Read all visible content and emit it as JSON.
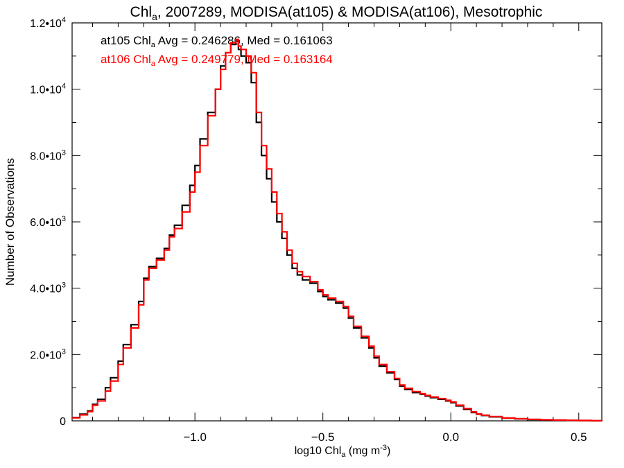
{
  "chart_data": {
    "type": "line",
    "step": true,
    "title": {
      "prefix": "Chl",
      "sub": "a",
      "suffix": ", 2007289, MODISA(at105) & MODISA(at106), Mesotrophic"
    },
    "xlabel": {
      "prefix": "log10 Chl",
      "sub": "a",
      "suffix": " (mg m",
      "sup": "-3",
      "end": ")"
    },
    "ylabel": "Number of Observations",
    "xlim": [
      -1.48,
      0.59
    ],
    "ylim": [
      0,
      12000
    ],
    "x_ticks": [
      {
        "value": -1.0,
        "label": "−1.0"
      },
      {
        "value": -0.5,
        "label": "−0.5"
      },
      {
        "value": 0.0,
        "label": "0.0"
      },
      {
        "value": 0.5,
        "label": "0.5"
      }
    ],
    "y_ticks": [
      {
        "value": 0,
        "mant": "0",
        "exp": ""
      },
      {
        "value": 2000,
        "mant": "2.0•10",
        "exp": "3"
      },
      {
        "value": 4000,
        "mant": "4.0•10",
        "exp": "3"
      },
      {
        "value": 6000,
        "mant": "6.0•10",
        "exp": "3"
      },
      {
        "value": 8000,
        "mant": "8.0•10",
        "exp": "3"
      },
      {
        "value": 10000,
        "mant": "1.0•10",
        "exp": "4"
      },
      {
        "value": 12000,
        "mant": "1.2•10",
        "exp": "4"
      }
    ],
    "series": [
      {
        "name": "at105",
        "color": "#000000",
        "annotation": {
          "prefix": "at105 Chl",
          "sub": "a",
          "suffix": " Avg = 0.246286, Med = 0.161063"
        },
        "x": [
          -1.48,
          -1.45,
          -1.42,
          -1.4,
          -1.38,
          -1.35,
          -1.33,
          -1.3,
          -1.28,
          -1.25,
          -1.22,
          -1.2,
          -1.18,
          -1.15,
          -1.12,
          -1.1,
          -1.08,
          -1.05,
          -1.02,
          -1.0,
          -0.98,
          -0.95,
          -0.92,
          -0.9,
          -0.88,
          -0.86,
          -0.84,
          -0.83,
          -0.82,
          -0.8,
          -0.78,
          -0.76,
          -0.74,
          -0.72,
          -0.7,
          -0.68,
          -0.66,
          -0.64,
          -0.62,
          -0.6,
          -0.58,
          -0.55,
          -0.52,
          -0.5,
          -0.48,
          -0.45,
          -0.42,
          -0.4,
          -0.38,
          -0.35,
          -0.32,
          -0.3,
          -0.28,
          -0.25,
          -0.22,
          -0.2,
          -0.18,
          -0.15,
          -0.12,
          -0.1,
          -0.08,
          -0.05,
          -0.02,
          0.0,
          0.02,
          0.05,
          0.08,
          0.1,
          0.12,
          0.15,
          0.2,
          0.25,
          0.3,
          0.35,
          0.4,
          0.45,
          0.5,
          0.55,
          0.59
        ],
        "y": [
          100,
          200,
          300,
          500,
          650,
          1000,
          1300,
          1800,
          2300,
          2900,
          3600,
          4300,
          4650,
          4900,
          5200,
          5600,
          5900,
          6500,
          7100,
          7700,
          8500,
          9300,
          10000,
          10700,
          11100,
          11350,
          11450,
          11200,
          11000,
          10800,
          10200,
          9000,
          8000,
          7300,
          6600,
          6000,
          5500,
          5000,
          4600,
          4400,
          4250,
          4150,
          3900,
          3750,
          3650,
          3550,
          3400,
          3100,
          2800,
          2500,
          2200,
          1900,
          1650,
          1450,
          1250,
          1050,
          950,
          850,
          800,
          750,
          700,
          650,
          600,
          550,
          450,
          350,
          250,
          200,
          160,
          120,
          80,
          60,
          40,
          30,
          20,
          15,
          10,
          5,
          3
        ]
      },
      {
        "name": "at106",
        "color": "#ff0000",
        "annotation": {
          "prefix": "at106 Chl",
          "sub": "a",
          "suffix": " Avg = 0.249779, Med = 0.163164"
        },
        "x": [
          -1.48,
          -1.45,
          -1.42,
          -1.4,
          -1.38,
          -1.35,
          -1.33,
          -1.3,
          -1.28,
          -1.25,
          -1.22,
          -1.2,
          -1.18,
          -1.15,
          -1.12,
          -1.1,
          -1.08,
          -1.05,
          -1.02,
          -1.0,
          -0.98,
          -0.95,
          -0.92,
          -0.9,
          -0.88,
          -0.86,
          -0.84,
          -0.83,
          -0.82,
          -0.8,
          -0.78,
          -0.76,
          -0.74,
          -0.72,
          -0.7,
          -0.68,
          -0.66,
          -0.64,
          -0.62,
          -0.6,
          -0.58,
          -0.55,
          -0.52,
          -0.5,
          -0.48,
          -0.45,
          -0.42,
          -0.4,
          -0.38,
          -0.35,
          -0.32,
          -0.3,
          -0.28,
          -0.25,
          -0.22,
          -0.2,
          -0.18,
          -0.15,
          -0.12,
          -0.1,
          -0.08,
          -0.05,
          -0.02,
          0.0,
          0.02,
          0.05,
          0.08,
          0.1,
          0.12,
          0.15,
          0.2,
          0.25,
          0.3,
          0.35,
          0.4,
          0.45,
          0.5,
          0.55,
          0.59
        ],
        "y": [
          90,
          180,
          280,
          470,
          600,
          900,
          1200,
          1700,
          2200,
          2800,
          3500,
          4250,
          4600,
          4850,
          5150,
          5550,
          5800,
          6300,
          6900,
          7500,
          8300,
          9200,
          10000,
          10600,
          11100,
          11400,
          11500,
          11300,
          11200,
          11000,
          10500,
          9300,
          8300,
          7600,
          6900,
          6250,
          5700,
          5150,
          4750,
          4500,
          4350,
          4200,
          3950,
          3800,
          3700,
          3600,
          3450,
          3150,
          2850,
          2550,
          2250,
          1950,
          1700,
          1480,
          1280,
          1080,
          980,
          880,
          820,
          770,
          720,
          670,
          620,
          570,
          470,
          370,
          270,
          210,
          170,
          130,
          85,
          65,
          45,
          32,
          22,
          16,
          11,
          6,
          4
        ]
      }
    ]
  }
}
